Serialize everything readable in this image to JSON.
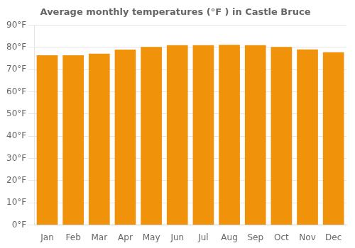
{
  "chart_data": {
    "type": "bar",
    "title": "Average monthly temperatures (°F ) in Castle Bruce",
    "categories": [
      "Jan",
      "Feb",
      "Mar",
      "Apr",
      "May",
      "Jun",
      "Jul",
      "Aug",
      "Sep",
      "Oct",
      "Nov",
      "Dec"
    ],
    "values": [
      76.5,
      76.5,
      77.2,
      79.0,
      80.2,
      81.0,
      81.0,
      81.2,
      81.0,
      80.2,
      79.1,
      77.8
    ],
    "color": "#F0920A",
    "ylim": [
      0,
      90
    ],
    "yticks": [
      {
        "value": 0,
        "label": "0°F"
      },
      {
        "value": 10,
        "label": "10°F"
      },
      {
        "value": 20,
        "label": "20°F"
      },
      {
        "value": 30,
        "label": "30°F"
      },
      {
        "value": 40,
        "label": "40°F"
      },
      {
        "value": 50,
        "label": "50°F"
      },
      {
        "value": 60,
        "label": "60°F"
      },
      {
        "value": 70,
        "label": "70°F"
      },
      {
        "value": 80,
        "label": "80°F"
      },
      {
        "value": 90,
        "label": "90°F"
      }
    ],
    "grid": true
  }
}
